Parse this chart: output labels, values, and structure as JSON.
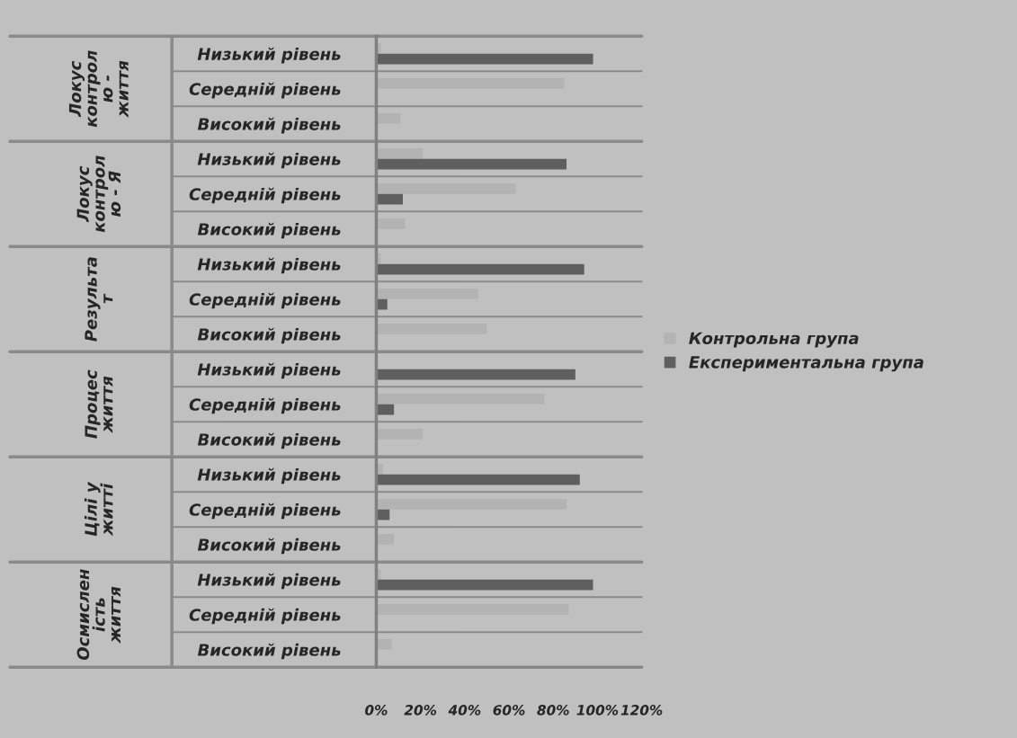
{
  "chart_data": {
    "type": "bar",
    "orientation": "horizontal",
    "categories": [
      "Низький рівень",
      "Середній рівень",
      "Високий рівень",
      "Низький рівень",
      "Середній рівень",
      "Високий рівень",
      "Низький рівень",
      "Середній рівень",
      "Високий рівень",
      "Низький рівень",
      "Середній рівень",
      "Високий рівень",
      "Низький рівень",
      "Середній рівень",
      "Високий рівень",
      "Низький рівень",
      "Середній рівень",
      "Високий рівень"
    ],
    "annotations": [
      "Локус\nконтрол\nю -\nжиття",
      "Локус\nконтрол\nю - Я",
      "Результа\nт",
      "Процес\nжиття",
      "Цілі у\nжитті",
      "Осмислен\nість\nжиття"
    ],
    "series": [
      {
        "name": "Контрольна група",
        "color": "#b3b3b3",
        "values": [
          2,
          85,
          11,
          21,
          63,
          13,
          2,
          46,
          50,
          0,
          76,
          21,
          3,
          86,
          8,
          2,
          87,
          7
        ]
      },
      {
        "name": "Експериментальна група",
        "color": "#5f5f5f",
        "values": [
          98,
          0,
          0,
          86,
          12,
          0,
          94,
          5,
          0,
          90,
          8,
          0,
          92,
          6,
          0,
          98,
          0,
          0
        ]
      }
    ],
    "xlim": [
      0,
      120
    ],
    "xticks": [
      {
        "value": 0,
        "label": "0%"
      },
      {
        "value": 20,
        "label": "20%"
      },
      {
        "value": 40,
        "label": "40%"
      },
      {
        "value": 60,
        "label": "60%"
      },
      {
        "value": 80,
        "label": "80%"
      },
      {
        "value": 100,
        "label": "100%"
      },
      {
        "value": 120,
        "label": "120%"
      }
    ],
    "legend": "right"
  }
}
